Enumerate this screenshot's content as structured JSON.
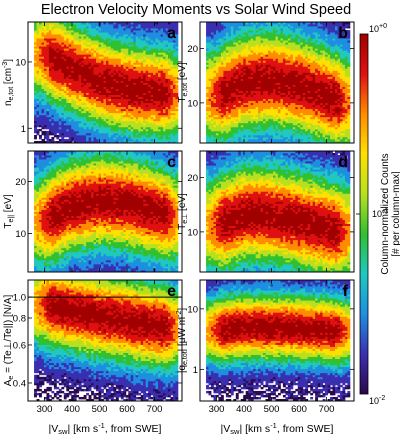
{
  "title": "Electron Velocity Moments vs Solar Wind Speed",
  "chart_data": [
    {
      "panel": "a",
      "type": "heatmap",
      "ylabel": "n_e,tot [cm^-3]",
      "ylabel_main": "n",
      "ylabel_sub": "e,tot",
      "ylabel_unit": " [cm",
      "ylabel_unit_sup": "-3",
      "ylabel_unit_end": "]",
      "yscale": "log",
      "ylim": [
        0.6,
        40
      ],
      "yticks": [
        1,
        10
      ],
      "xlim": [
        240,
        800
      ],
      "xticks": [
        300,
        400,
        500,
        600,
        700
      ],
      "show_xticklabels": false,
      "core": [
        [
          300,
          13
        ],
        [
          400,
          8
        ],
        [
          500,
          5.2
        ],
        [
          600,
          4.0
        ],
        [
          700,
          3.5
        ],
        [
          770,
          3.3
        ]
      ],
      "spread_decades": 0.55,
      "hline": null
    },
    {
      "panel": "b",
      "type": "heatmap",
      "ylabel": "T_e,tot [eV]",
      "ylabel_main": "T",
      "ylabel_sub": "e,tot",
      "ylabel_unit": " [eV]",
      "ylabel_unit_sup": "",
      "ylabel_unit_end": "",
      "yscale": "log",
      "ylim": [
        6,
        28
      ],
      "yticks": [
        10,
        20
      ],
      "xlim": [
        240,
        800
      ],
      "xticks": [
        300,
        400,
        500,
        600,
        700
      ],
      "show_xticklabels": false,
      "core": [
        [
          300,
          11
        ],
        [
          400,
          13
        ],
        [
          500,
          13.5
        ],
        [
          600,
          12.5
        ],
        [
          700,
          11
        ],
        [
          770,
          10
        ]
      ],
      "spread_decades": 0.22,
      "hline": null
    },
    {
      "panel": "c",
      "type": "heatmap",
      "ylabel": "T_e|| [eV]",
      "ylabel_main": "T",
      "ylabel_sub": "e||",
      "ylabel_unit": " [eV]",
      "ylabel_unit_sup": "",
      "ylabel_unit_end": "",
      "yscale": "log",
      "ylim": [
        6,
        30
      ],
      "yticks": [
        10,
        20
      ],
      "xlim": [
        240,
        800
      ],
      "xticks": [
        300,
        400,
        500,
        600,
        700
      ],
      "show_xticklabels": false,
      "core": [
        [
          300,
          12
        ],
        [
          400,
          14.5
        ],
        [
          500,
          15.5
        ],
        [
          600,
          15
        ],
        [
          700,
          13.5
        ],
        [
          770,
          12.5
        ]
      ],
      "spread_decades": 0.22,
      "hline": null
    },
    {
      "panel": "d",
      "type": "heatmap",
      "ylabel": "T_e⊥ [eV]",
      "ylabel_main": "T",
      "ylabel_sub": "e⊥",
      "ylabel_unit": " [eV]",
      "ylabel_unit_sup": "",
      "ylabel_unit_end": "",
      "yscale": "log",
      "ylim": [
        6,
        28
      ],
      "yticks": [
        10,
        20
      ],
      "xlim": [
        240,
        800
      ],
      "xticks": [
        300,
        400,
        500,
        600,
        700
      ],
      "show_xticklabels": false,
      "core": [
        [
          300,
          11
        ],
        [
          400,
          12.5
        ],
        [
          500,
          12.5
        ],
        [
          600,
          11.5
        ],
        [
          700,
          10.5
        ],
        [
          770,
          10
        ]
      ],
      "spread_decades": 0.22,
      "hline": null
    },
    {
      "panel": "e",
      "type": "heatmap",
      "ylabel": "A_e = (T_e⊥/T_e||) [N/A]",
      "ylabel_main": "A",
      "ylabel_sub": "e",
      "ylabel_unit": " = (T",
      "ylabel_unit_sup": "",
      "ylabel_unit_end": "e⊥/Te||) [N/A]",
      "yscale": "log",
      "ylim": [
        0.33,
        1.2
      ],
      "yticks": [
        0.4,
        0.6,
        0.8,
        1.0
      ],
      "xlim": [
        240,
        800
      ],
      "xticks": [
        300,
        400,
        500,
        600,
        700
      ],
      "show_xticklabels": true,
      "core": [
        [
          300,
          0.92
        ],
        [
          400,
          0.87
        ],
        [
          500,
          0.82
        ],
        [
          600,
          0.78
        ],
        [
          700,
          0.74
        ],
        [
          770,
          0.72
        ]
      ],
      "spread_decades": 0.16,
      "hline": 1.0
    },
    {
      "panel": "f",
      "type": "heatmap",
      "ylabel": "|q_e,tot| [μW m^-2]",
      "ylabel_main": "|q",
      "ylabel_sub": "e,tot",
      "ylabel_unit": "| [μW m",
      "ylabel_unit_sup": "-2",
      "ylabel_unit_end": "]",
      "yscale": "log",
      "ylim": [
        0.3,
        30
      ],
      "yticks": [
        1,
        10
      ],
      "xlim": [
        240,
        800
      ],
      "xticks": [
        300,
        400,
        500,
        600,
        700
      ],
      "show_xticklabels": true,
      "core": [
        [
          300,
          4.5
        ],
        [
          400,
          5.0
        ],
        [
          500,
          5.0
        ],
        [
          600,
          4.8
        ],
        [
          700,
          4.5
        ],
        [
          770,
          4.2
        ]
      ],
      "spread_decades": 0.45,
      "hline": null
    }
  ],
  "xlabel_left": "|V_sw| [km s^-1, from SWE]",
  "xlabel_right": "|V_sw| [km s^-1, from SWE]",
  "xlabel_parts": {
    "main": "|V",
    "sub": "sw",
    "mid": "| [km s",
    "sup": "-1",
    "end": ", from SWE]"
  },
  "colorbar": {
    "label_line1": "Column-normalized Counts",
    "label_line2": "[# per column-max]",
    "scale": "log",
    "range": [
      0.01,
      1
    ],
    "tick_top": "10",
    "tick_top_sup": "+0",
    "tick_mid": "10",
    "tick_mid_sup": "-1",
    "tick_bot": "10",
    "tick_bot_sup": "-2",
    "colors": [
      "#2a0a4a",
      "#3a2fb0",
      "#1e8fe0",
      "#20c8c0",
      "#30c030",
      "#b8e020",
      "#ffe000",
      "#ff8c00",
      "#e01010",
      "#a00000"
    ]
  }
}
